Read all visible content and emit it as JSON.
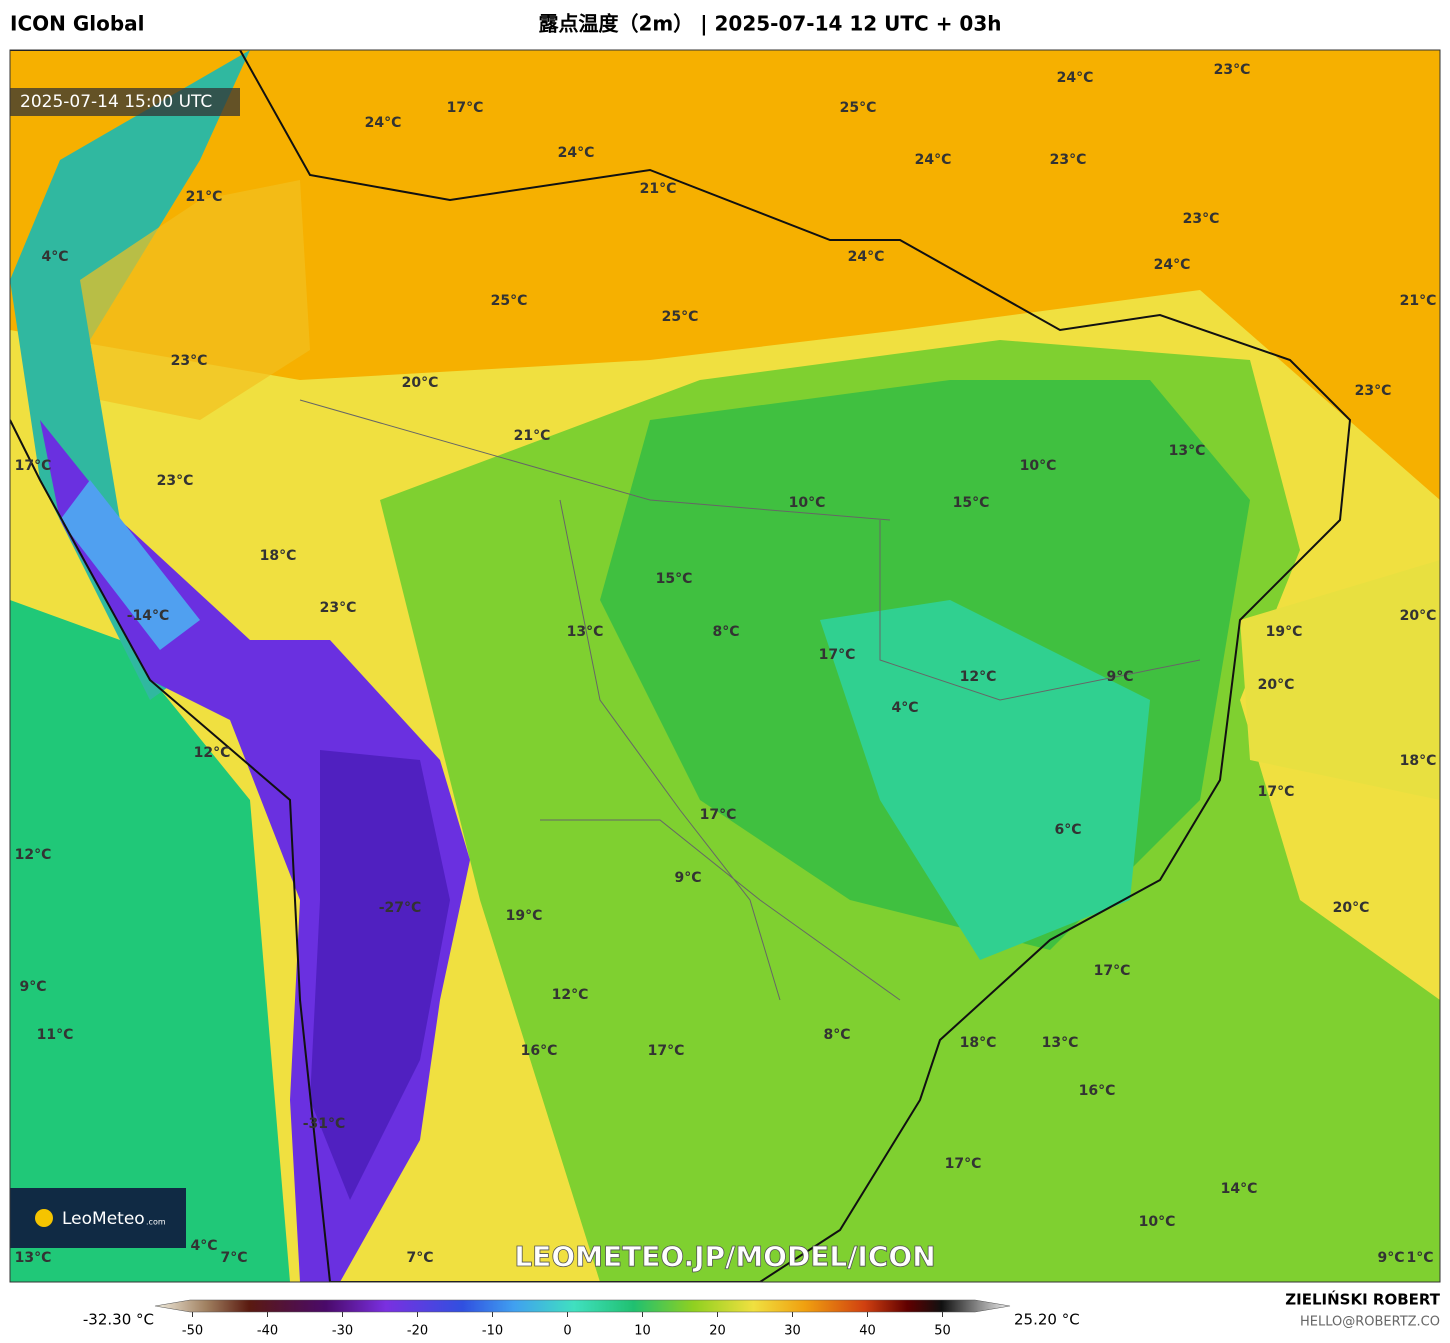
{
  "header": {
    "model": "ICON Global",
    "title": "露点温度（2m） | 2025-07-14 12 UTC + 03h"
  },
  "map": {
    "valid_time": "2025-07-14 15:00 UTC",
    "watermark": "LEOMETEO.JP/MODEL/ICON",
    "logo": "LeoMeteo",
    "logo_suffix": ".com",
    "labels": [
      "24°C",
      "23°C",
      "17°C",
      "24°C",
      "25°C",
      "24°C",
      "24°C",
      "23°C",
      "21°C",
      "21°C",
      "23°C",
      "4°C",
      "24°C",
      "24°C",
      "25°C",
      "25°C",
      "21°C",
      "23°C",
      "20°C",
      "23°C",
      "21°C",
      "13°C",
      "10°C",
      "17°C",
      "23°C",
      "10°C",
      "15°C",
      "18°C",
      "15°C",
      "23°C",
      "-14°C",
      "20°C",
      "13°C",
      "8°C",
      "19°C",
      "17°C",
      "12°C",
      "9°C",
      "20°C",
      "4°C",
      "12°C",
      "18°C",
      "17°C",
      "17°C",
      "6°C",
      "12°C",
      "9°C",
      "-27°C",
      "20°C",
      "19°C",
      "17°C",
      "9°C",
      "12°C",
      "11°C",
      "8°C",
      "18°C",
      "13°C",
      "16°C",
      "17°C",
      "16°C",
      "-31°C",
      "17°C",
      "14°C",
      "10°C",
      "4°C",
      "7°C",
      "7°C",
      "13°C",
      "9°C",
      "1°C"
    ]
  },
  "colorbar": {
    "min_label": "-32.30 °C",
    "max_label": "25.20 °C",
    "lim": [
      -55,
      59
    ],
    "ticks": [
      -50,
      -40,
      -30,
      -20,
      -10,
      0,
      10,
      20,
      30,
      40,
      50
    ]
  },
  "footer": {
    "author": "ZIELIŃSKI ROBERT",
    "email": "HELLO@ROBERTZ.CO"
  }
}
